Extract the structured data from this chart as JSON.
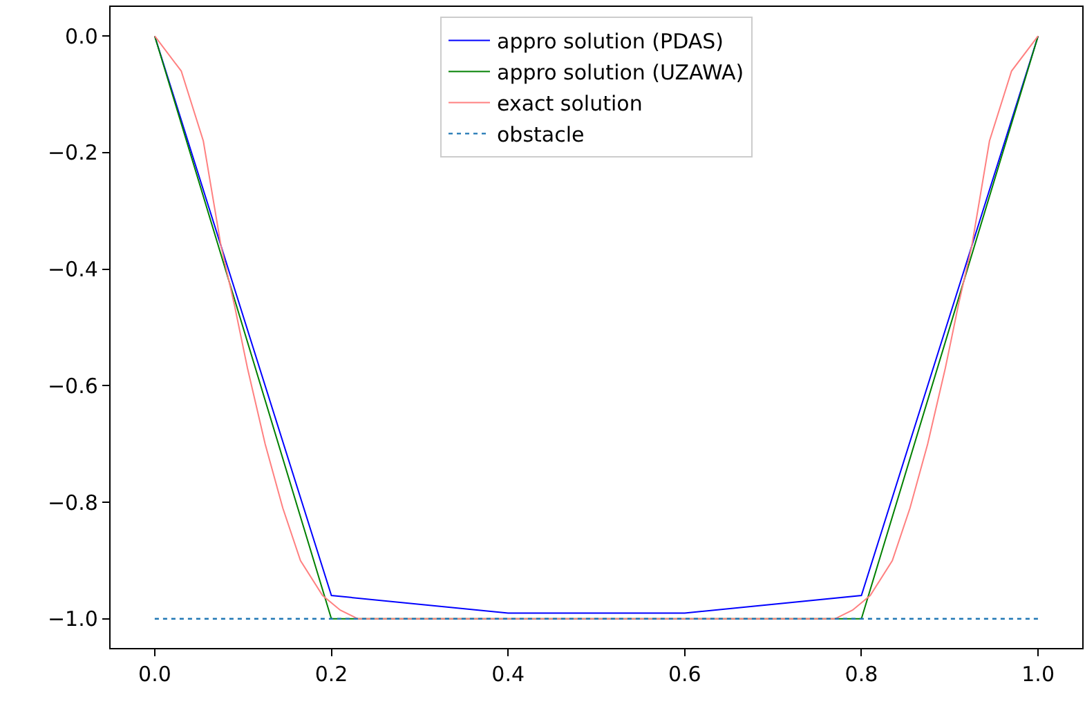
{
  "chart_data": {
    "type": "line",
    "xlim": [
      -0.05,
      1.05
    ],
    "ylim": [
      -1.05,
      0.05
    ],
    "xticks": [
      {
        "value": 0,
        "label": "0.0"
      },
      {
        "value": 0.2,
        "label": "0.2"
      },
      {
        "value": 0.4,
        "label": "0.4"
      },
      {
        "value": 0.6,
        "label": "0.6"
      },
      {
        "value": 0.8,
        "label": "0.8"
      },
      {
        "value": 1,
        "label": "1.0"
      }
    ],
    "yticks": [
      {
        "value": 0,
        "label": "0.0"
      },
      {
        "value": -0.2,
        "label": "−0.2"
      },
      {
        "value": -0.4,
        "label": "−0.4"
      },
      {
        "value": -0.6,
        "label": "−0.6"
      },
      {
        "value": -0.8,
        "label": "−0.8"
      },
      {
        "value": -1,
        "label": "−1.0"
      }
    ],
    "legend": "top",
    "marker": "none",
    "series": [
      {
        "name": "appro solution (PDAS)",
        "color": "#0000ff",
        "line_style": "solid",
        "x": [
          0,
          0.2,
          0.4,
          0.6,
          0.8,
          1
        ],
        "values": [
          0,
          -0.96,
          -0.99,
          -0.99,
          -0.96,
          0
        ]
      },
      {
        "name": "appro solution (UZAWA)",
        "color": "#008000",
        "line_style": "solid",
        "x": [
          0,
          0.2,
          0.4,
          0.6,
          0.8,
          1
        ],
        "values": [
          0,
          -1,
          -1,
          -1,
          -1,
          0
        ]
      },
      {
        "name": "exact solution",
        "color": "#ff8080",
        "line_style": "solid",
        "x": [
          0,
          0.03,
          0.055,
          0.075,
          0.09,
          0.105,
          0.125,
          0.145,
          0.165,
          0.19,
          0.21,
          0.23,
          0.5,
          0.77,
          0.79,
          0.81,
          0.835,
          0.855,
          0.875,
          0.895,
          0.91,
          0.925,
          0.945,
          0.97,
          1
        ],
        "values": [
          0,
          -0.06,
          -0.18,
          -0.36,
          -0.46,
          -0.57,
          -0.7,
          -0.81,
          -0.9,
          -0.96,
          -0.985,
          -1,
          -1,
          -1,
          -0.985,
          -0.96,
          -0.9,
          -0.81,
          -0.7,
          -0.57,
          -0.46,
          -0.36,
          -0.18,
          -0.06,
          0
        ]
      },
      {
        "name": "obstacle",
        "color": "#1f77b4",
        "line_style": "dotted",
        "x": [
          0,
          1
        ],
        "values": [
          -1,
          -1
        ]
      }
    ]
  }
}
